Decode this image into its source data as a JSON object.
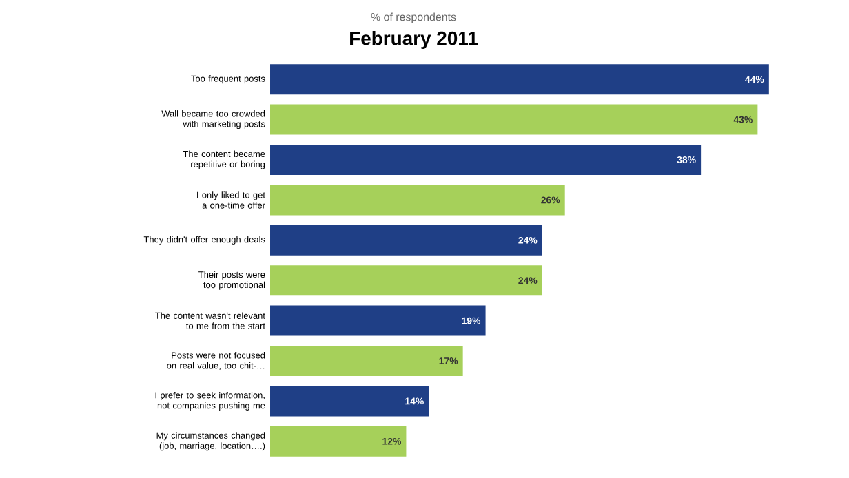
{
  "chart_data": {
    "type": "bar",
    "orientation": "horizontal",
    "subtitle": "% of respondents",
    "title": "February 2011",
    "categories": [
      "Too frequent posts",
      "Wall became too crowded with marketing posts",
      "The content became repetitive or boring",
      "I only liked to get a one-time offer",
      "They didn't offer enough deals",
      "Their posts were too promotional",
      "The content wasn't relevant to me from the start",
      "Posts were not focused on real value, too chit-…",
      "I prefer to seek information, not companies pushing me",
      "My circumstances changed (job, marriage, location….)"
    ],
    "values": [
      44,
      43,
      38,
      26,
      24,
      24,
      19,
      17,
      14,
      12
    ],
    "colors": [
      "#1f3f86",
      "#a6d05a",
      "#1f3f86",
      "#a6d05a",
      "#1f3f86",
      "#a6d05a",
      "#1f3f86",
      "#a6d05a",
      "#1f3f86",
      "#a6d05a"
    ],
    "value_labels": [
      "44%",
      "43%",
      "38%",
      "26%",
      "24%",
      "24%",
      "19%",
      "17%",
      "14%",
      "12%"
    ]
  }
}
